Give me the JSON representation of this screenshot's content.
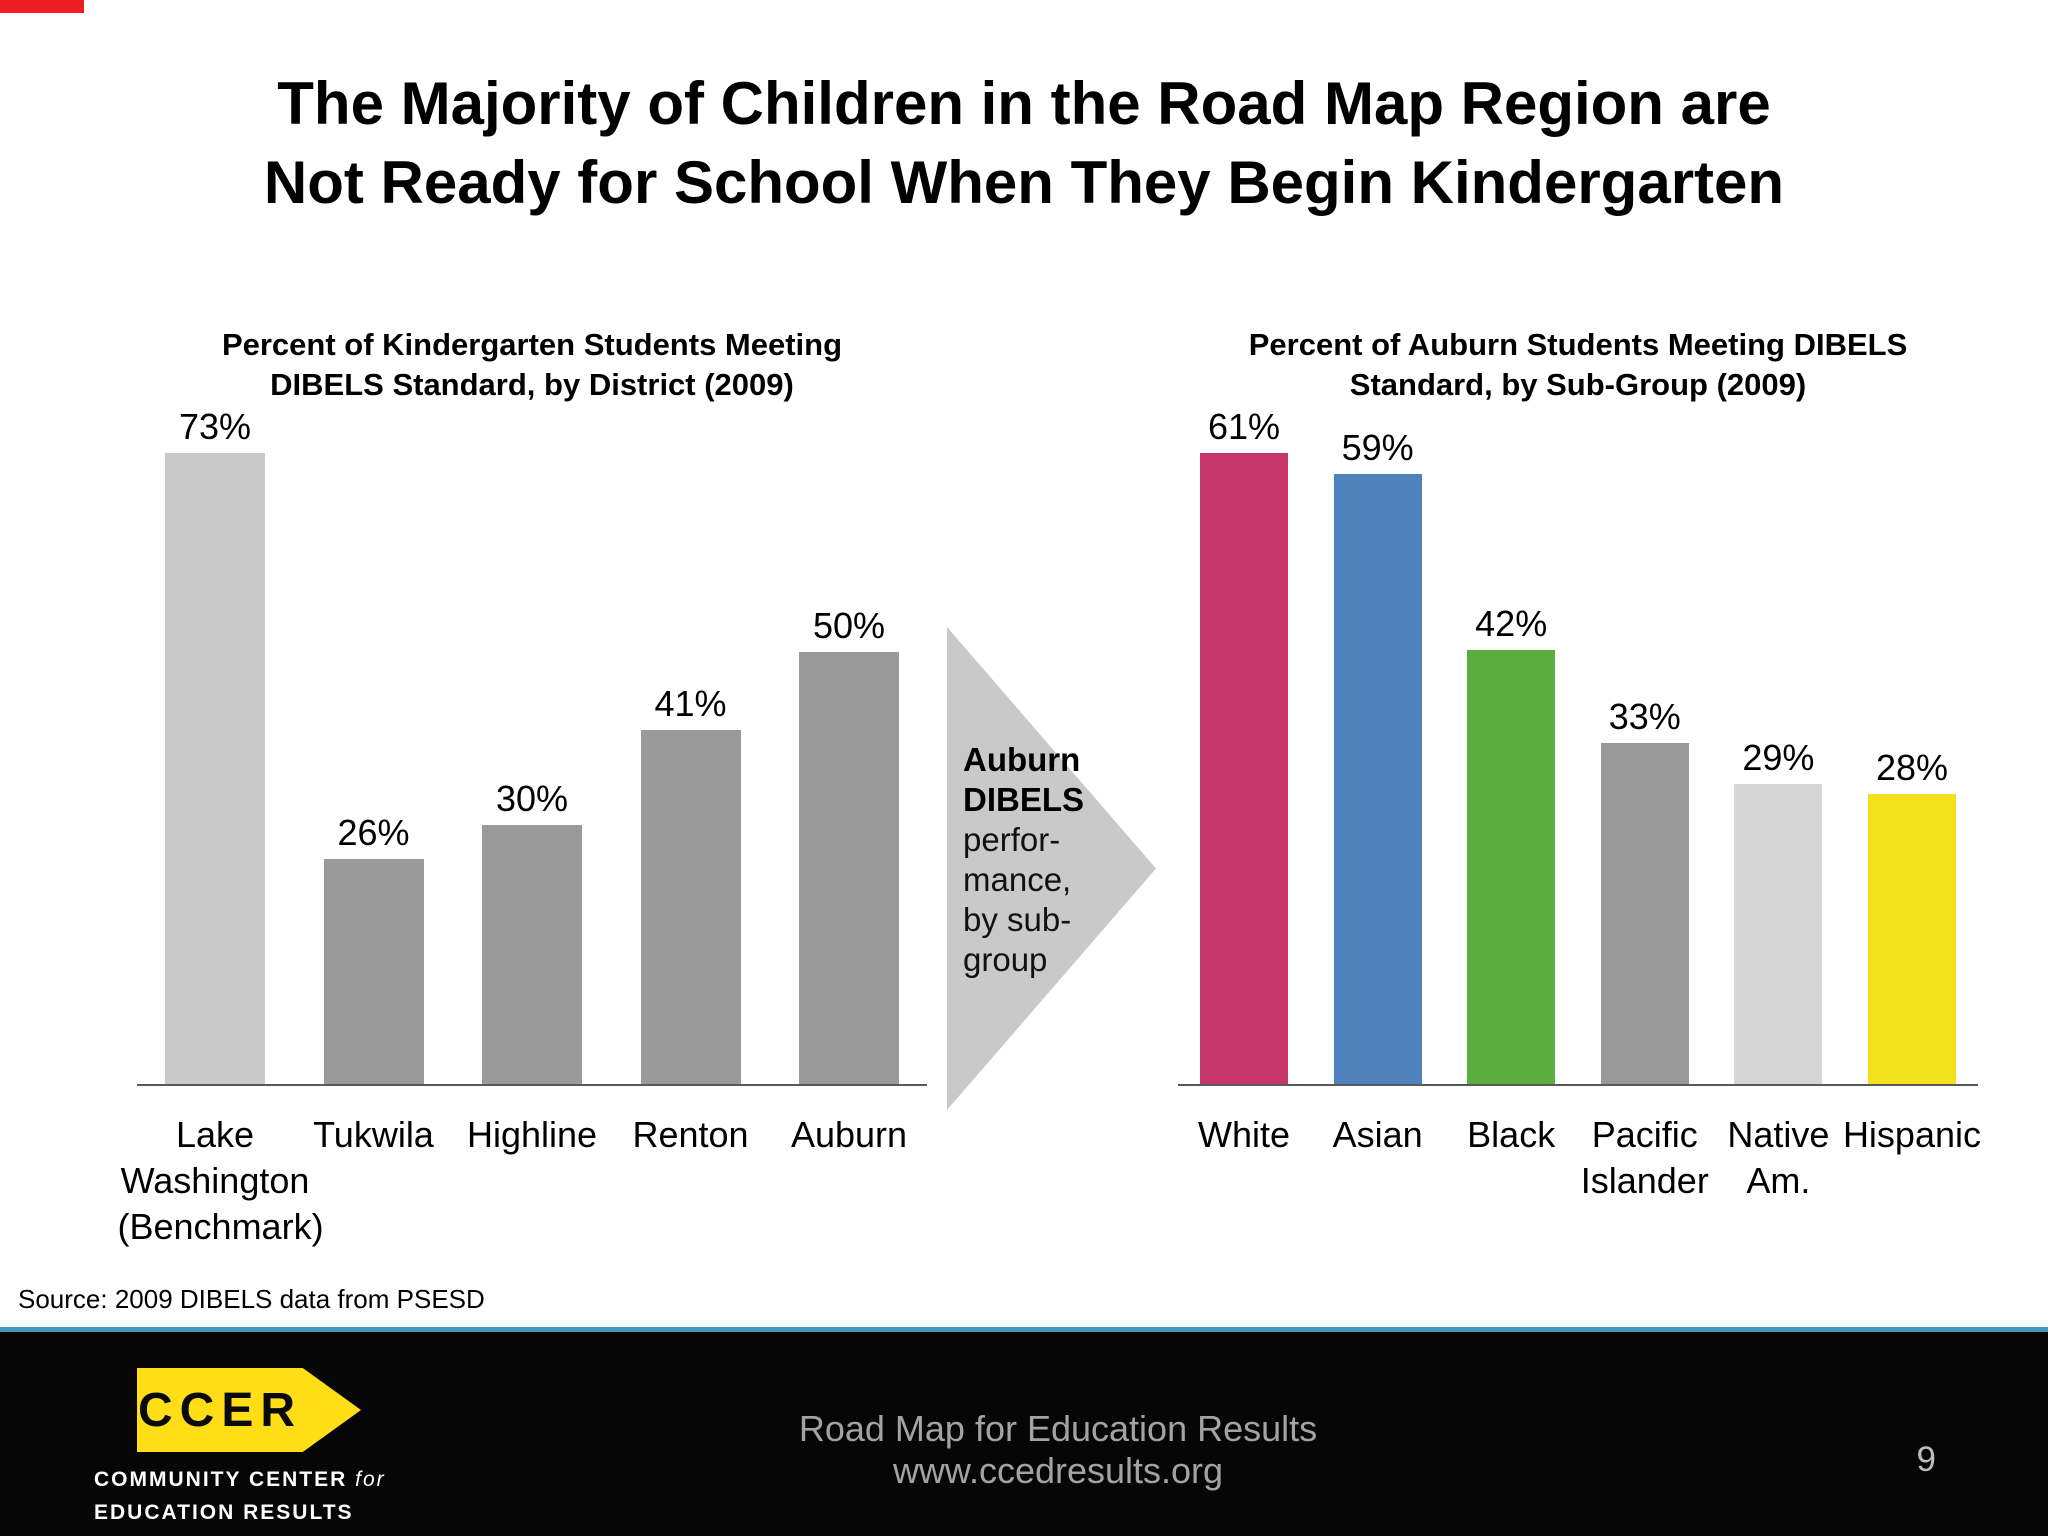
{
  "slide": {
    "title_lines": [
      "The Majority of Children in the Road Map Region are",
      "Not Ready for School When They Begin Kindergarten"
    ],
    "source": "Source: 2009 DIBELS data from PSESD",
    "page_number": "9"
  },
  "arrow": {
    "lines": [
      "Auburn",
      "DIBELS",
      "perfor-",
      "mance,",
      "by sub-",
      "group"
    ]
  },
  "footer": {
    "logo_text": "CCER",
    "org_line1": "COMMUNITY CENTER",
    "org_line1_italic": "for",
    "org_line2": "EDUCATION RESULTS",
    "center_line1": "Road Map for Education Results",
    "center_line2": "www.ccedresults.org"
  },
  "colors": {
    "accent_red": "#EE1C25",
    "divider_blue": "#4396BE",
    "footer_black": "#060606",
    "logo_yellow": "#FFDE17",
    "arrow_gray": "#C9C9C9"
  },
  "chart_data": [
    {
      "type": "bar",
      "title": "Percent of Kindergarten Students Meeting DIBELS Standard, by District (2009)",
      "categories": [
        "Lake Washington (Benchmark)",
        "Tukwila",
        "Highline",
        "Renton",
        "Auburn"
      ],
      "values": [
        73,
        26,
        30,
        41,
        50
      ],
      "value_labels": [
        "73%",
        "26%",
        "30%",
        "41%",
        "50%"
      ],
      "bar_colors": [
        "#C9C9C9",
        "#9A9A9A",
        "#9A9A9A",
        "#9A9A9A",
        "#9A9A9A"
      ],
      "unit": "%",
      "ylim": [
        0,
        80
      ],
      "grid": false,
      "legend": "none",
      "xlabel": "",
      "ylabel": ""
    },
    {
      "type": "bar",
      "title": "Percent of Auburn Students Meeting DIBELS Standard, by Sub-Group (2009)",
      "categories": [
        "White",
        "Asian",
        "Black",
        "Pacific Islander",
        "Native Am.",
        "Hispanic"
      ],
      "values": [
        61,
        59,
        42,
        33,
        29,
        28
      ],
      "value_labels": [
        "61%",
        "59%",
        "42%",
        "33%",
        "29%",
        "28%"
      ],
      "bar_colors": [
        "#C53568",
        "#4F81BD",
        "#5BAE3E",
        "#999999",
        "#D6D6D6",
        "#F3E11C"
      ],
      "unit": "%",
      "ylim": [
        0,
        67
      ],
      "grid": false,
      "legend": "none",
      "xlabel": "",
      "ylabel": ""
    }
  ]
}
